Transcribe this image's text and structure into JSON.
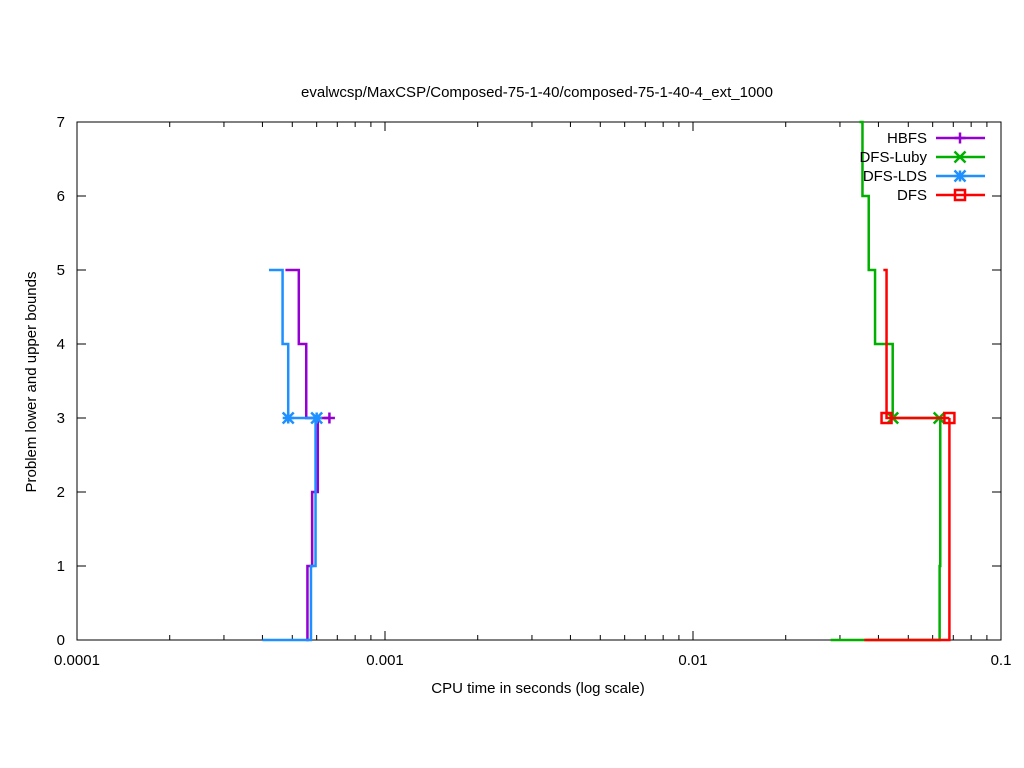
{
  "chart_data": {
    "type": "line",
    "title": "evalwcsp/MaxCSP/Composed-75-1-40/composed-75-1-40-4_ext_1000",
    "xlabel": "CPU time in seconds (log scale)",
    "ylabel": "Problem lower and upper bounds",
    "xscale": "log",
    "xlim": [
      0.0001,
      0.1
    ],
    "ylim": [
      0,
      7
    ],
    "x_ticks": [
      {
        "value": 0.0001,
        "label": "0.0001"
      },
      {
        "value": 0.001,
        "label": "0.001"
      },
      {
        "value": 0.01,
        "label": "0.01"
      },
      {
        "value": 0.1,
        "label": "0.1"
      }
    ],
    "y_ticks": [
      {
        "value": 0,
        "label": "0"
      },
      {
        "value": 1,
        "label": "1"
      },
      {
        "value": 2,
        "label": "2"
      },
      {
        "value": 3,
        "label": "3"
      },
      {
        "value": 4,
        "label": "4"
      },
      {
        "value": 5,
        "label": "5"
      },
      {
        "value": 6,
        "label": "6"
      },
      {
        "value": 7,
        "label": "7"
      }
    ],
    "legend_position": "top-right",
    "grid": false,
    "series": [
      {
        "name": "HBFS",
        "color": "#9400d3",
        "marker": "plus",
        "upper": [
          [
            0.000475,
            5
          ],
          [
            0.000525,
            4
          ],
          [
            0.000555,
            3
          ],
          [
            0.00066,
            3
          ]
        ],
        "lower": [
          [
            0.000555,
            0
          ],
          [
            0.00056,
            1
          ],
          [
            0.00058,
            2
          ],
          [
            0.000605,
            3
          ]
        ],
        "markers": [
          [
            0.00066,
            3
          ]
        ]
      },
      {
        "name": "DFS-Luby",
        "color": "#00b000",
        "marker": "x",
        "upper": [
          [
            0.0347,
            7
          ],
          [
            0.0355,
            6
          ],
          [
            0.0372,
            5
          ],
          [
            0.039,
            4
          ],
          [
            0.0445,
            3
          ],
          [
            0.063,
            3
          ]
        ],
        "lower": [
          [
            0.028,
            0
          ],
          [
            0.0625,
            0
          ],
          [
            0.0632,
            1
          ],
          [
            0.0635,
            3
          ]
        ],
        "markers": [
          [
            0.0445,
            3
          ],
          [
            0.063,
            3
          ]
        ]
      },
      {
        "name": "DFS-LDS",
        "color": "#1e90ff",
        "marker": "star",
        "upper": [
          [
            0.00042,
            5
          ],
          [
            0.000465,
            4
          ],
          [
            0.000485,
            3
          ],
          [
            0.0006,
            3
          ]
        ],
        "lower": [
          [
            0.0004,
            0
          ],
          [
            0.000565,
            0
          ],
          [
            0.000575,
            1
          ],
          [
            0.000595,
            3
          ]
        ],
        "markers": [
          [
            0.000485,
            3
          ],
          [
            0.0006,
            3
          ]
        ]
      },
      {
        "name": "DFS",
        "color": "#ff0000",
        "marker": "square",
        "upper": [
          [
            0.0415,
            5
          ],
          [
            0.0425,
            4
          ],
          [
            0.0425,
            3
          ],
          [
            0.068,
            3
          ]
        ],
        "lower": [
          [
            0.036,
            0
          ],
          [
            0.067,
            0
          ],
          [
            0.068,
            1
          ],
          [
            0.068,
            3
          ]
        ],
        "markers": [
          [
            0.0425,
            3
          ],
          [
            0.068,
            3
          ]
        ]
      }
    ]
  }
}
